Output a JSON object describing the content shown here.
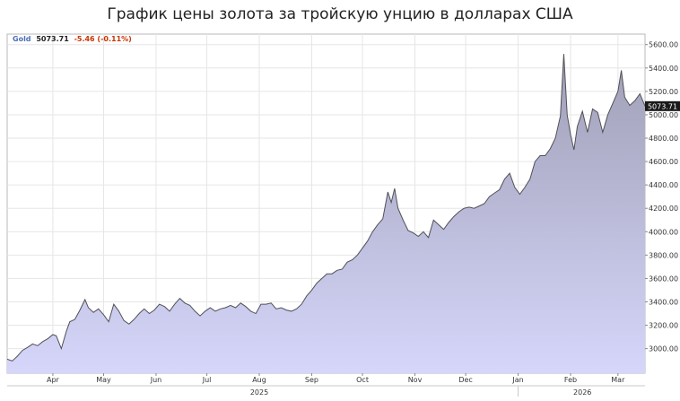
{
  "title": "График цены золота за тройскую унцию в долларах США",
  "legend": {
    "name": "Gold",
    "last": "5073.71",
    "change": "-5.46",
    "change_pct": "(-0.11%)",
    "name_color": "#4a6fb5",
    "change_color": "#cc3300"
  },
  "chart_data": {
    "type": "area",
    "title": "График цены золота за тройскую унцию в долларах США",
    "xlabel": "",
    "ylabel": "",
    "ylim": [
      2790,
      5690
    ],
    "yticks": [
      3000,
      3200,
      3400,
      3600,
      3800,
      4000,
      4200,
      4400,
      4600,
      4800,
      5000,
      5200,
      5400,
      5600
    ],
    "ytick_labels": [
      "3000.00",
      "3200.00",
      "3400.00",
      "3600.00",
      "3800.00",
      "4000.00",
      "4200.00",
      "4400.00",
      "4600.00",
      "4800.00",
      "5000.00",
      "5200.00",
      "5400.00",
      "5600.00"
    ],
    "xlim": [
      "2025-03-05",
      "2026-03-17"
    ],
    "x_axis": "right",
    "grid": true,
    "months": [
      {
        "label": "Apr",
        "date": "2025-04-01"
      },
      {
        "label": "May",
        "date": "2025-05-01"
      },
      {
        "label": "Jun",
        "date": "2025-06-01"
      },
      {
        "label": "Jul",
        "date": "2025-07-01"
      },
      {
        "label": "Aug",
        "date": "2025-08-01"
      },
      {
        "label": "Sep",
        "date": "2025-09-01"
      },
      {
        "label": "Oct",
        "date": "2025-10-01"
      },
      {
        "label": "Nov",
        "date": "2025-11-01"
      },
      {
        "label": "Dec",
        "date": "2025-12-01"
      },
      {
        "label": "Jan",
        "date": "2026-01-01"
      },
      {
        "label": "Feb",
        "date": "2026-02-01"
      },
      {
        "label": "Mar",
        "date": "2026-03-01"
      }
    ],
    "years": [
      {
        "label": "2025",
        "date": "2025-08-01"
      },
      {
        "label": "2026",
        "date": "2026-02-08"
      }
    ],
    "last_value_label": "5073.71",
    "colors": {
      "fill_top": "#9f9fb6",
      "fill_bottom": "#d6d6fb",
      "line": "#505058",
      "grid": "#e6e6e6"
    },
    "series": [
      {
        "x": [
          "2025-03-05",
          "2025-03-08",
          "2025-03-11",
          "2025-03-14",
          "2025-03-17",
          "2025-03-20",
          "2025-03-23",
          "2025-03-26",
          "2025-03-29",
          "2025-04-01",
          "2025-04-03",
          "2025-04-06",
          "2025-04-09",
          "2025-04-11",
          "2025-04-14",
          "2025-04-17",
          "2025-04-20",
          "2025-04-22",
          "2025-04-25",
          "2025-04-28",
          "2025-05-01",
          "2025-05-04",
          "2025-05-07",
          "2025-05-10",
          "2025-05-13",
          "2025-05-16",
          "2025-05-19",
          "2025-05-22",
          "2025-05-25",
          "2025-05-28",
          "2025-05-31",
          "2025-06-03",
          "2025-06-06",
          "2025-06-09",
          "2025-06-12",
          "2025-06-15",
          "2025-06-18",
          "2025-06-21",
          "2025-06-24",
          "2025-06-27",
          "2025-06-30",
          "2025-07-03",
          "2025-07-06",
          "2025-07-09",
          "2025-07-12",
          "2025-07-15",
          "2025-07-18",
          "2025-07-21",
          "2025-07-24",
          "2025-07-27",
          "2025-07-30",
          "2025-08-02",
          "2025-08-05",
          "2025-08-08",
          "2025-08-11",
          "2025-08-14",
          "2025-08-17",
          "2025-08-20",
          "2025-08-23",
          "2025-08-26",
          "2025-08-29",
          "2025-09-01",
          "2025-09-04",
          "2025-09-07",
          "2025-09-10",
          "2025-09-13",
          "2025-09-16",
          "2025-09-19",
          "2025-09-22",
          "2025-09-25",
          "2025-09-28",
          "2025-10-01",
          "2025-10-04",
          "2025-10-07",
          "2025-10-10",
          "2025-10-13",
          "2025-10-16",
          "2025-10-18",
          "2025-10-20",
          "2025-10-22",
          "2025-10-25",
          "2025-10-28",
          "2025-10-31",
          "2025-11-03",
          "2025-11-06",
          "2025-11-09",
          "2025-11-12",
          "2025-11-15",
          "2025-11-18",
          "2025-11-21",
          "2025-11-24",
          "2025-11-27",
          "2025-11-30",
          "2025-12-03",
          "2025-12-06",
          "2025-12-09",
          "2025-12-12",
          "2025-12-15",
          "2025-12-18",
          "2025-12-21",
          "2025-12-24",
          "2025-12-27",
          "2025-12-30",
          "2026-01-02",
          "2026-01-05",
          "2026-01-08",
          "2026-01-11",
          "2026-01-14",
          "2026-01-17",
          "2026-01-20",
          "2026-01-23",
          "2026-01-26",
          "2026-01-28",
          "2026-01-30",
          "2026-02-01",
          "2026-02-03",
          "2026-02-05",
          "2026-02-08",
          "2026-02-11",
          "2026-02-14",
          "2026-02-17",
          "2026-02-20",
          "2026-02-23",
          "2026-02-26",
          "2026-03-01",
          "2026-03-03",
          "2026-03-05",
          "2026-03-08",
          "2026-03-11",
          "2026-03-14",
          "2026-03-17"
        ],
        "y": [
          2910,
          2895,
          2935,
          2985,
          3010,
          3040,
          3025,
          3060,
          3085,
          3120,
          3110,
          3000,
          3150,
          3230,
          3250,
          3330,
          3420,
          3350,
          3310,
          3340,
          3290,
          3230,
          3380,
          3320,
          3240,
          3210,
          3250,
          3300,
          3340,
          3300,
          3330,
          3380,
          3360,
          3320,
          3380,
          3430,
          3390,
          3370,
          3320,
          3280,
          3320,
          3350,
          3320,
          3340,
          3350,
          3370,
          3350,
          3390,
          3360,
          3320,
          3300,
          3380,
          3380,
          3390,
          3340,
          3350,
          3330,
          3320,
          3340,
          3380,
          3450,
          3500,
          3560,
          3600,
          3640,
          3640,
          3670,
          3680,
          3740,
          3760,
          3800,
          3860,
          3920,
          4000,
          4060,
          4110,
          4340,
          4250,
          4370,
          4200,
          4100,
          4010,
          3990,
          3960,
          4000,
          3950,
          4100,
          4060,
          4020,
          4080,
          4130,
          4170,
          4200,
          4210,
          4200,
          4220,
          4240,
          4300,
          4330,
          4360,
          4450,
          4500,
          4380,
          4320,
          4380,
          4450,
          4600,
          4650,
          4650,
          4710,
          4800,
          4990,
          5520,
          5000,
          4830,
          4700,
          4900,
          5030,
          4850,
          5050,
          5020,
          4850,
          5000,
          5100,
          5200,
          5380,
          5150,
          5080,
          5120,
          5180,
          5073.71
        ]
      }
    ]
  }
}
